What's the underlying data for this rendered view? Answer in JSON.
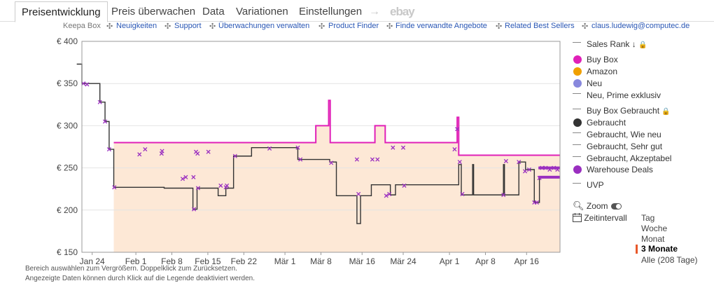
{
  "tabs": {
    "items": [
      "Preisentwicklung",
      "Preis überwachen",
      "Data",
      "Variationen",
      "Einstellungen"
    ],
    "arrow": "→",
    "ebay": "ebay"
  },
  "links": {
    "keepa_box": "Keepa Box",
    "sep": "✣",
    "items": [
      "Neuigkeiten",
      "Support",
      "Überwachungen verwalten",
      "Product Finder",
      "Finde verwandte Angebote",
      "Related Best Sellers"
    ],
    "email": "claus.ludewig@computec.de"
  },
  "colors": {
    "buy_box": "#e020b8",
    "amazon": "#f0a000",
    "new": "#8888dd",
    "used": "#333333",
    "warehouse": "#9a2fc0",
    "fill": "#fde8d6"
  },
  "chart_data": {
    "type": "line",
    "ylim": [
      150,
      400
    ],
    "yticks": [
      "€ 150",
      "€ 200",
      "€ 250",
      "€ 300",
      "€ 350",
      "€ 400"
    ],
    "xticks": [
      "Jan 24",
      "Feb 1",
      "Feb 8",
      "Feb 15",
      "Feb 22",
      "Mär 1",
      "Mär 8",
      "Mär 16",
      "Mär 24",
      "Apr 1",
      "Apr 8",
      "Apr 16"
    ],
    "x_start_label": "Jan 24",
    "series": [
      {
        "name": "Buy Box",
        "points": [
          [
            6.2,
            280
          ],
          [
            45.5,
            280
          ],
          [
            45.5,
            300
          ],
          [
            48,
            300
          ],
          [
            48,
            330
          ],
          [
            48.3,
            330
          ],
          [
            48.3,
            280
          ],
          [
            57,
            280
          ],
          [
            57,
            300
          ],
          [
            59,
            300
          ],
          [
            59,
            280
          ],
          [
            73,
            280
          ],
          [
            73,
            310
          ],
          [
            73.3,
            310
          ],
          [
            73.3,
            265
          ],
          [
            93,
            265
          ]
        ]
      },
      {
        "name": "Gebraucht",
        "points": [
          [
            -1,
            373
          ],
          [
            0,
            373
          ],
          [
            0,
            350
          ],
          [
            3.5,
            350
          ],
          [
            3.5,
            328
          ],
          [
            4.5,
            328
          ],
          [
            4.5,
            305
          ],
          [
            5.3,
            305
          ],
          [
            5.3,
            272
          ],
          [
            6.2,
            272
          ],
          [
            6.2,
            227
          ],
          [
            16,
            227
          ],
          [
            16,
            226
          ],
          [
            21.6,
            226
          ],
          [
            21.6,
            201
          ],
          [
            22.4,
            201
          ],
          [
            22.4,
            226
          ],
          [
            26.5,
            226
          ],
          [
            26.5,
            217
          ],
          [
            28,
            217
          ],
          [
            28,
            226
          ],
          [
            29.5,
            226
          ],
          [
            29.5,
            264
          ],
          [
            33,
            264
          ],
          [
            33,
            274
          ],
          [
            42,
            274
          ],
          [
            42,
            260
          ],
          [
            48.2,
            260
          ],
          [
            48.2,
            257
          ],
          [
            49.5,
            257
          ],
          [
            49.5,
            217
          ],
          [
            53.5,
            217
          ],
          [
            53.5,
            184
          ],
          [
            54.2,
            184
          ],
          [
            54.2,
            217
          ],
          [
            56.3,
            217
          ],
          [
            56.3,
            230
          ],
          [
            60,
            230
          ],
          [
            60,
            218
          ],
          [
            61,
            218
          ],
          [
            61,
            230
          ],
          [
            73.3,
            230
          ],
          [
            73.3,
            254
          ],
          [
            73.8,
            254
          ],
          [
            73.8,
            218
          ],
          [
            76,
            218
          ],
          [
            76,
            254
          ],
          [
            76.2,
            254
          ],
          [
            76.2,
            218
          ],
          [
            82,
            218
          ],
          [
            82,
            254
          ],
          [
            82.2,
            254
          ],
          [
            82.2,
            218
          ],
          [
            85,
            218
          ],
          [
            85,
            257
          ],
          [
            86.3,
            257
          ],
          [
            86.3,
            248
          ],
          [
            88,
            248
          ],
          [
            88,
            209
          ],
          [
            89,
            209
          ],
          [
            89,
            239
          ],
          [
            93,
            239
          ]
        ]
      },
      {
        "name": "Warehouse Deals",
        "points": [
          [
            0.3,
            350
          ],
          [
            1,
            349
          ],
          [
            3.5,
            328
          ],
          [
            4.5,
            305
          ],
          [
            5.3,
            272
          ],
          [
            6.3,
            227
          ],
          [
            11.2,
            266
          ],
          [
            12.3,
            272
          ],
          [
            15.5,
            267
          ],
          [
            15.6,
            270
          ],
          [
            19.6,
            237
          ],
          [
            20.2,
            239
          ],
          [
            21.7,
            239
          ],
          [
            21.8,
            201
          ],
          [
            22.2,
            269
          ],
          [
            22.5,
            267
          ],
          [
            22.6,
            226
          ],
          [
            24.6,
            269
          ],
          [
            27,
            229
          ],
          [
            28,
            227
          ],
          [
            28.2,
            229
          ],
          [
            29.8,
            264
          ],
          [
            36.5,
            273
          ],
          [
            42,
            274
          ],
          [
            42.5,
            260
          ],
          [
            48.5,
            256
          ],
          [
            53.5,
            260
          ],
          [
            53.8,
            219
          ],
          [
            56.5,
            260
          ],
          [
            57.5,
            260
          ],
          [
            59.2,
            217
          ],
          [
            59.8,
            219
          ],
          [
            60.5,
            274
          ],
          [
            62.5,
            274
          ],
          [
            62.7,
            229
          ],
          [
            72.5,
            272
          ],
          [
            73,
            296
          ],
          [
            73.5,
            257
          ],
          [
            74,
            219
          ],
          [
            82,
            218
          ],
          [
            82.5,
            258
          ],
          [
            85,
            257
          ],
          [
            86.2,
            246
          ],
          [
            87,
            248
          ],
          [
            88,
            209
          ],
          [
            88.5,
            209
          ],
          [
            89,
            238
          ],
          [
            89.5,
            250
          ],
          [
            90.2,
            250
          ],
          [
            91,
            248
          ],
          [
            91.8,
            250
          ],
          [
            92.5,
            248
          ]
        ]
      }
    ]
  },
  "legend": {
    "sales_rank": "Sales Rank",
    "sales_rank_icon": "↓",
    "lock_icon": "🔒",
    "buy_box": "Buy Box",
    "amazon": "Amazon",
    "neu": "Neu",
    "neu_prime": "Neu, Prime exklusiv",
    "buy_box_used": "Buy Box Gebraucht",
    "gebraucht": "Gebraucht",
    "gebraucht_wie_neu": "Gebraucht, Wie neu",
    "gebraucht_sehr_gut": "Gebraucht, Sehr gut",
    "gebraucht_akzeptabel": "Gebraucht, Akzeptabel",
    "warehouse": "Warehouse Deals",
    "uvp": "UVP"
  },
  "controls": {
    "zoom": "Zoom",
    "zeitintervall": "Zeitintervall",
    "ranges": [
      "Tag",
      "Woche",
      "Monat",
      "3 Monate",
      "Alle (208 Tage)"
    ],
    "selected_range": "3 Monate"
  },
  "footer": {
    "line1": "Bereich auswählen zum Vergrößern. Doppelklick zum Zurücksetzen.",
    "line2": "Angezeigte Daten können durch Klick auf die Legende deaktiviert werden."
  }
}
